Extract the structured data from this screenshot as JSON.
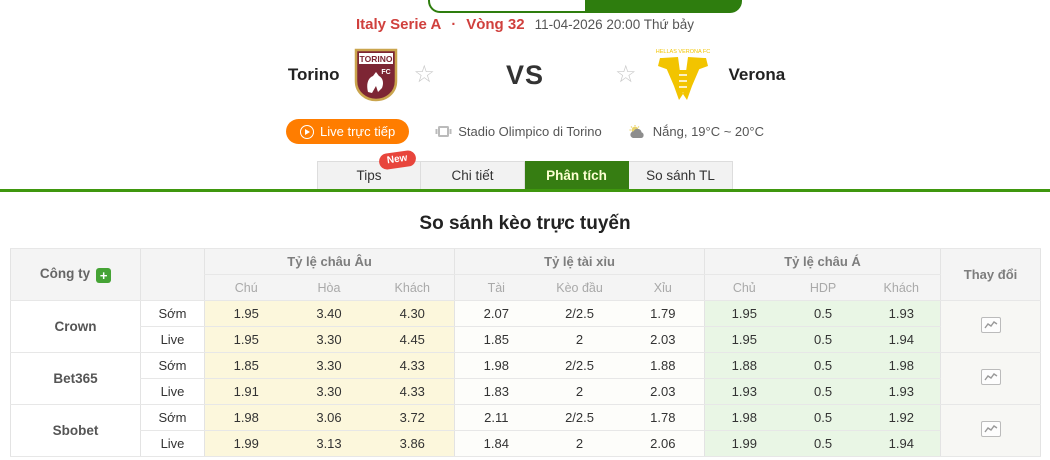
{
  "top": {
    "league": "Italy Serie A",
    "dot": "·",
    "round": "Vòng 32",
    "datetime": "11-04-2026 20:00 Thứ bảy"
  },
  "match": {
    "home": {
      "name": "Torino",
      "crest_text": "TORINO",
      "crest_sub": "FC"
    },
    "away": {
      "name": "Verona",
      "crest_text": "HELLAS VERONA FC"
    },
    "vs": "VS"
  },
  "info": {
    "live_label": "Live trực tiếp",
    "stadium": "Stadio Olimpico di Torino",
    "weather": "Nắng, 19°C ~ 20°C"
  },
  "tabs": [
    {
      "label": "Tips",
      "badge": "New",
      "active": false
    },
    {
      "label": "Chi tiết",
      "active": false
    },
    {
      "label": "Phân tích",
      "active": true
    },
    {
      "label": "So sánh TL",
      "active": false
    }
  ],
  "section_title": "So sánh kèo trực tuyến",
  "odds_table": {
    "company_header": "Công ty",
    "change_header": "Thay đổi",
    "row_types": [
      "Sớm",
      "Live"
    ],
    "groups": [
      {
        "label": "Tỷ lệ châu Âu",
        "cols": [
          "Chú",
          "Hòa",
          "Khách"
        ]
      },
      {
        "label": "Tỷ lệ tài xỉu",
        "cols": [
          "Tài",
          "Kèo đầu",
          "Xỉu"
        ]
      },
      {
        "label": "Tỷ lệ châu Á",
        "cols": [
          "Chủ",
          "HDP",
          "Khách"
        ]
      }
    ],
    "companies": [
      {
        "name": "Crown",
        "rows": [
          {
            "type": "Sớm",
            "eu": [
              "1.95",
              "3.40",
              "4.30"
            ],
            "ou": [
              "2.07",
              "2/2.5",
              "1.79"
            ],
            "ah": [
              "1.95",
              "0.5",
              "1.93"
            ]
          },
          {
            "type": "Live",
            "eu": [
              "1.95",
              "3.30",
              "4.45"
            ],
            "ou": [
              "1.85",
              "2",
              "2.03"
            ],
            "ah": [
              "1.95",
              "0.5",
              "1.94"
            ]
          }
        ]
      },
      {
        "name": "Bet365",
        "rows": [
          {
            "type": "Sớm",
            "eu": [
              "1.85",
              "3.30",
              "4.33"
            ],
            "ou": [
              "1.98",
              "2/2.5",
              "1.88"
            ],
            "ah": [
              "1.88",
              "0.5",
              "1.98"
            ]
          },
          {
            "type": "Live",
            "eu": [
              "1.91",
              "3.30",
              "4.33"
            ],
            "ou": [
              "1.83",
              "2",
              "2.03"
            ],
            "ah": [
              "1.93",
              "0.5",
              "1.93"
            ]
          }
        ]
      },
      {
        "name": "Sbobet",
        "rows": [
          {
            "type": "Sớm",
            "eu": [
              "1.98",
              "3.06",
              "3.72"
            ],
            "ou": [
              "2.11",
              "2/2.5",
              "1.78"
            ],
            "ah": [
              "1.98",
              "0.5",
              "1.92"
            ]
          },
          {
            "type": "Live",
            "eu": [
              "1.99",
              "3.13",
              "3.86"
            ],
            "ou": [
              "1.84",
              "2",
              "2.06"
            ],
            "ah": [
              "1.99",
              "0.5",
              "1.94"
            ]
          }
        ]
      }
    ]
  },
  "colors": {
    "accent_green": "#367d12",
    "rule_green": "#3f970e",
    "accent_red": "#d0403d",
    "live_orange": "#ff7d00",
    "eu_bg": "#fcf7dc",
    "ah_bg": "#e9f6e5",
    "torino_maroon": "#7d2634",
    "verona_yellow": "#f2c400"
  }
}
